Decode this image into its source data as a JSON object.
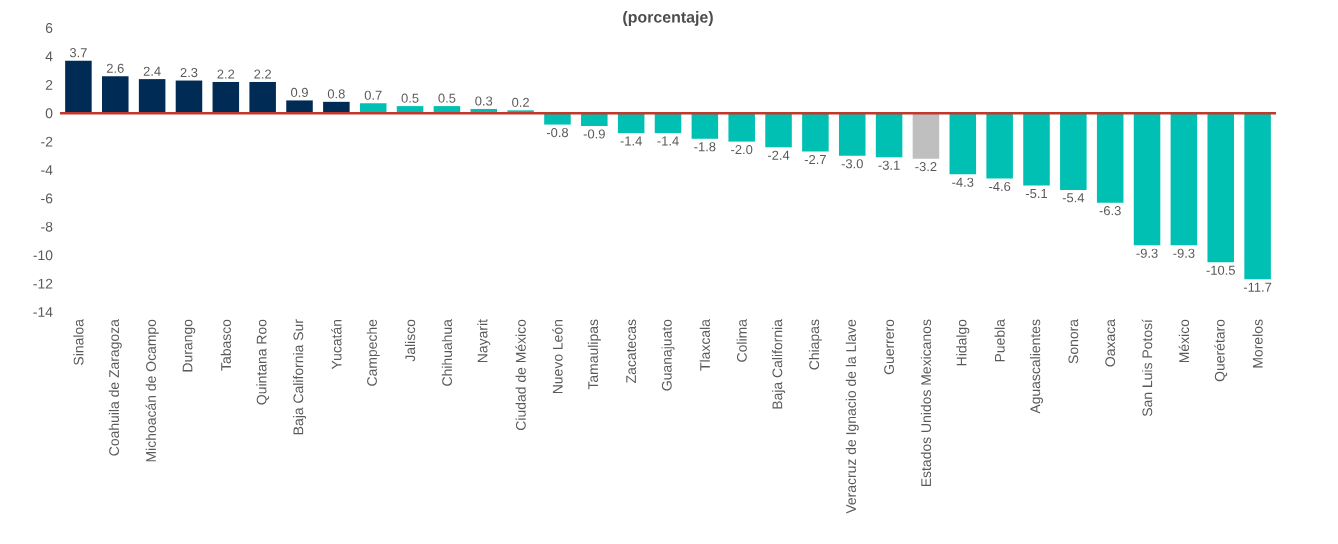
{
  "chart_data": {
    "type": "bar",
    "title": "(porcentaje)",
    "categories": [
      "Sinaloa",
      "Coahuila de Zaragoza",
      "Michoacán de Ocampo",
      "Durango",
      "Tabasco",
      "Quintana Roo",
      "Baja California Sur",
      "Yucatán",
      "Campeche",
      "Jalisco",
      "Chihuahua",
      "Nayarit",
      "Ciudad de México",
      "Nuevo León",
      "Tamaulipas",
      "Zacatecas",
      "Guanajuato",
      "Tlaxcala",
      "Colima",
      "Baja California",
      "Chiapas",
      "Veracruz de Ignacio de la Llave",
      "Guerrero",
      "Estados Unidos Mexicanos",
      "Hidalgo",
      "Puebla",
      "Aguascalientes",
      "Sonora",
      "Oaxaca",
      "San Luis Potosí",
      "México",
      "Querétaro",
      "Morelos"
    ],
    "values": [
      3.7,
      2.6,
      2.4,
      2.3,
      2.2,
      2.2,
      0.9,
      0.8,
      0.7,
      0.5,
      0.5,
      0.3,
      0.2,
      -0.8,
      -0.9,
      -1.4,
      -1.4,
      -1.8,
      -2.0,
      -2.4,
      -2.7,
      -3.0,
      -3.1,
      -3.2,
      -4.3,
      -4.6,
      -5.1,
      -5.4,
      -6.3,
      -9.3,
      -9.3,
      -10.5,
      -11.7
    ],
    "colors": [
      "#002b55",
      "#002b55",
      "#002b55",
      "#002b55",
      "#002b55",
      "#002b55",
      "#002b55",
      "#002b55",
      "#00bfb3",
      "#00bfb3",
      "#00bfb3",
      "#00bfb3",
      "#00bfb3",
      "#00bfb3",
      "#00bfb3",
      "#00bfb3",
      "#00bfb3",
      "#00bfb3",
      "#00bfb3",
      "#00bfb3",
      "#00bfb3",
      "#00bfb3",
      "#00bfb3",
      "#bfbfbf",
      "#00bfb3",
      "#00bfb3",
      "#00bfb3",
      "#00bfb3",
      "#00bfb3",
      "#00bfb3",
      "#00bfb3",
      "#00bfb3",
      "#00bfb3"
    ],
    "ylim": [
      -14,
      6
    ],
    "yticks": [
      -14,
      -12,
      -10,
      -8,
      -6,
      -4,
      -2,
      0,
      2,
      4,
      6
    ],
    "value_labels": [
      "3.7",
      "2.6",
      "2.4",
      "2.3",
      "2.2",
      "2.2",
      "0.9",
      "0.8",
      "0.7",
      "0.5",
      "0.5",
      "0.3",
      "0.2",
      "-0.8",
      "-0.9",
      "-1.4",
      "-1.4",
      "-1.8",
      "-2.0",
      "-2.4",
      "-2.7",
      "-3.0",
      "-3.1",
      "-3.2",
      "-4.3",
      "-4.6",
      "-5.1",
      "-5.4",
      "-6.3",
      "-9.3",
      "-9.3",
      "-10.5",
      "-11.7"
    ],
    "ref_lines": [
      {
        "axis": "y",
        "value": 0,
        "color": "#c0392b"
      }
    ]
  }
}
